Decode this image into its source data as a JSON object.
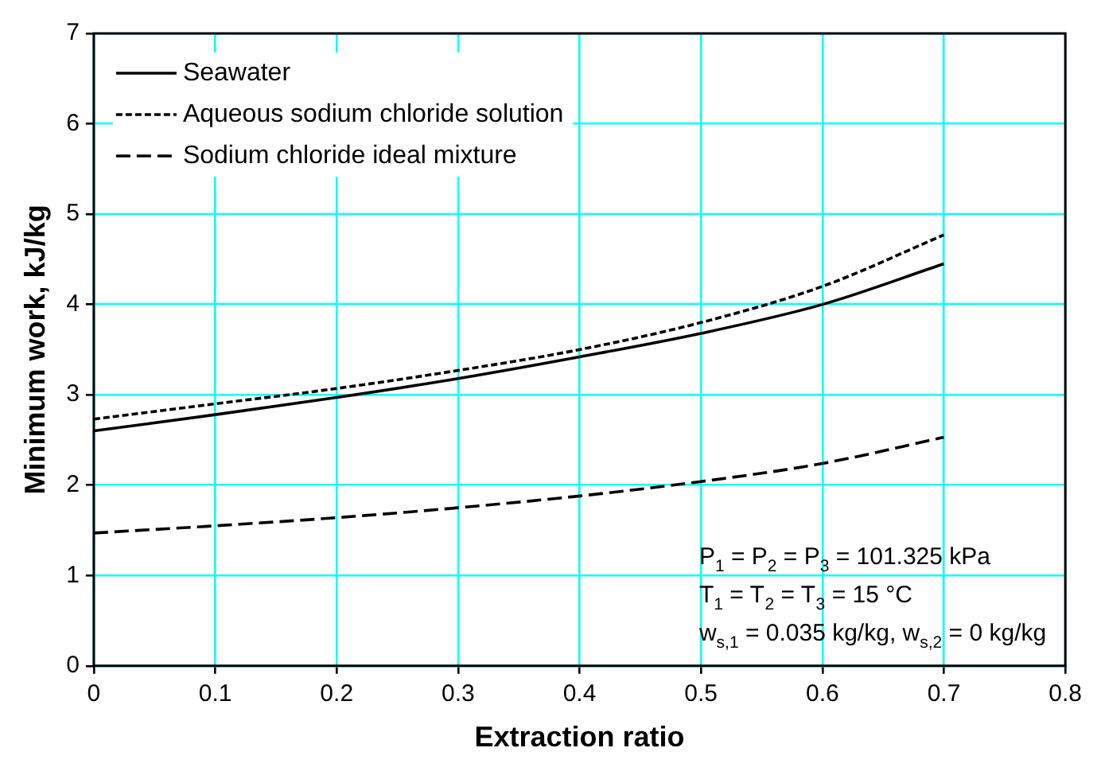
{
  "chart_data": {
    "type": "line",
    "xlabel": "Extraction ratio",
    "ylabel": "Minimum work, kJ/kg",
    "x": [
      0,
      0.1,
      0.2,
      0.3,
      0.4,
      0.5,
      0.6,
      0.7
    ],
    "xlim": [
      0,
      0.8
    ],
    "xticks": [
      0,
      0.1,
      0.2,
      0.3,
      0.4,
      0.5,
      0.6,
      0.7,
      0.8
    ],
    "ylim": [
      0,
      7
    ],
    "yticks": [
      0,
      1,
      2,
      3,
      4,
      5,
      6,
      7
    ],
    "grid": true,
    "legend": "top left",
    "marker": "none",
    "series": [
      {
        "name": "Seawater",
        "color": "#000000",
        "line_style": "solid",
        "values": [
          2.6,
          2.78,
          2.97,
          3.18,
          3.42,
          3.68,
          4.0,
          4.45
        ]
      },
      {
        "name": "Aqueous sodium chloride solution",
        "color": "#000000",
        "line_style": "dotted",
        "values": [
          2.73,
          2.9,
          3.07,
          3.27,
          3.5,
          3.8,
          4.2,
          4.77
        ]
      },
      {
        "name": "Sodium chloride ideal mixture",
        "color": "#000000",
        "line_style": "dashed",
        "values": [
          1.47,
          1.55,
          1.64,
          1.75,
          1.88,
          2.04,
          2.24,
          2.53
        ]
      }
    ],
    "annotations": [
      "P$_{1}$ = P$_{2}$ = P$_{3}$ = 101.325 kPa",
      "T$_{1}$ = T$_{2}$ = T$_{3}$ = 15 °C",
      "w$_{s,1}$ = 0.035 kg/kg, w$_{s,2}$ = 0 kg/kg"
    ]
  }
}
